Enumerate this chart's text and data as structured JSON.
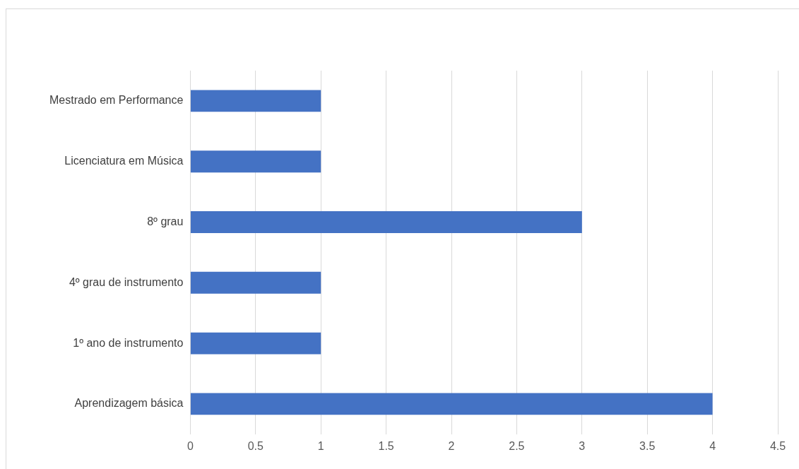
{
  "chart_data": {
    "type": "bar",
    "orientation": "horizontal",
    "categories": [
      "Mestrado em Performance",
      "Licenciatura em Música",
      "8º grau",
      "4º grau de instrumento",
      "1º ano de instrumento",
      "Aprendizagem básica"
    ],
    "values": [
      1,
      1,
      3,
      1,
      1,
      4
    ],
    "color": "#4472c4",
    "xlim": [
      0,
      4.5
    ],
    "xticks": [
      0,
      0.5,
      1,
      1.5,
      2,
      2.5,
      3,
      3.5,
      4,
      4.5
    ],
    "grid": "x",
    "legend": false
  }
}
